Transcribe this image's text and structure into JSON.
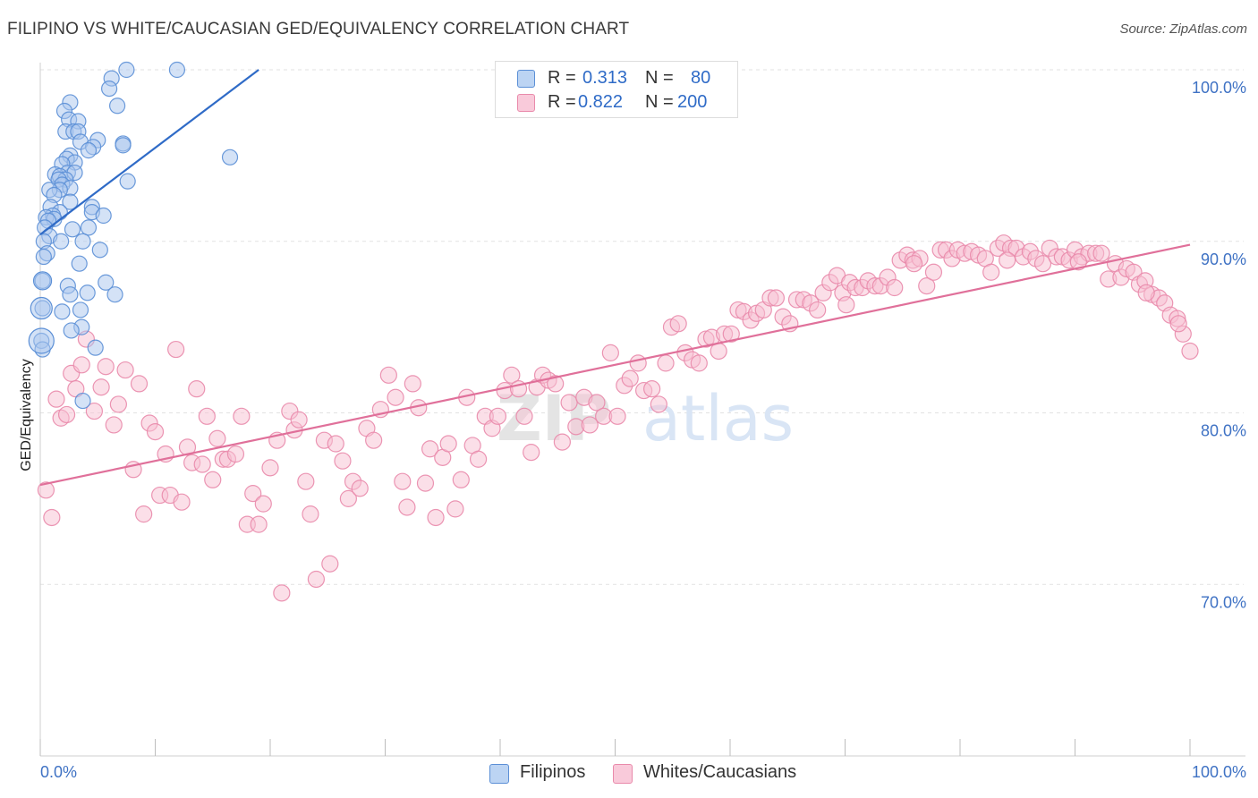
{
  "header": {
    "title": "FILIPINO VS WHITE/CAUCASIAN GED/EQUIVALENCY CORRELATION CHART",
    "source": "Source: ZipAtlas.com"
  },
  "legend": {
    "rows": [
      {
        "r_label": "R =",
        "r_value": "0.313",
        "n_label": "N =",
        "n_value": "80",
        "color": "#8db4e8"
      },
      {
        "r_label": "R =",
        "r_value": "0.822",
        "n_label": "N =",
        "n_value": "200",
        "color": "#f4a6c0"
      }
    ]
  },
  "bottom_legend": {
    "filipinos": "Filipinos",
    "whites": "Whites/Caucasians"
  },
  "colors": {
    "blue_fill": "#a9c6ee",
    "blue_stroke": "#5b8fd6",
    "blue_line": "#2f6bc7",
    "pink_fill": "#f7bfd2",
    "pink_stroke": "#e98aab",
    "pink_line": "#e0709a",
    "tick_text": "#3f72c4"
  },
  "watermark": {
    "zip": "ZIP",
    "atlas": "atlas"
  },
  "chart_data": {
    "type": "scatter",
    "title": "FILIPINO VS WHITE/CAUCASIAN GED/EQUIVALENCY CORRELATION CHART",
    "xlabel": "",
    "ylabel": "GED/Equivalency",
    "xlim": [
      0,
      100
    ],
    "ylim": [
      60,
      100
    ],
    "x_tick_labels": [
      "0.0%",
      "100.0%"
    ],
    "y_ticks": [
      70,
      80,
      90,
      100
    ],
    "y_tick_labels": [
      "70.0%",
      "80.0%",
      "90.0%",
      "100.0%"
    ],
    "grid": true,
    "series": [
      {
        "name": "Filipinos",
        "trend": {
          "x0": 0.0,
          "y0": 90.4,
          "x1": 19.0,
          "y1": 100.0
        },
        "points": [
          [
            7.5,
            100
          ],
          [
            11.9,
            100
          ],
          [
            6.2,
            99.5
          ],
          [
            6.0,
            98.9
          ],
          [
            2.6,
            98.1
          ],
          [
            6.7,
            97.9
          ],
          [
            2.1,
            97.6
          ],
          [
            2.5,
            97.1
          ],
          [
            3.3,
            97.0
          ],
          [
            2.2,
            96.4
          ],
          [
            2.9,
            96.4
          ],
          [
            3.3,
            96.4
          ],
          [
            5.0,
            95.9
          ],
          [
            3.5,
            95.8
          ],
          [
            7.2,
            95.7
          ],
          [
            7.2,
            95.6
          ],
          [
            4.6,
            95.5
          ],
          [
            4.2,
            95.3
          ],
          [
            2.6,
            95.0
          ],
          [
            16.5,
            94.9
          ],
          [
            2.3,
            94.8
          ],
          [
            3.0,
            94.6
          ],
          [
            1.9,
            94.5
          ],
          [
            2.4,
            94.0
          ],
          [
            3.0,
            94.0
          ],
          [
            1.3,
            93.9
          ],
          [
            1.7,
            93.8
          ],
          [
            2.2,
            93.6
          ],
          [
            1.6,
            93.6
          ],
          [
            7.6,
            93.5
          ],
          [
            1.9,
            93.3
          ],
          [
            2.6,
            93.1
          ],
          [
            1.7,
            93.0
          ],
          [
            0.8,
            93.0
          ],
          [
            1.2,
            92.7
          ],
          [
            2.6,
            92.3
          ],
          [
            4.5,
            92.0
          ],
          [
            0.9,
            92.0
          ],
          [
            1.7,
            91.7
          ],
          [
            4.5,
            91.7
          ],
          [
            1.1,
            91.5
          ],
          [
            5.5,
            91.5
          ],
          [
            0.5,
            91.4
          ],
          [
            1.2,
            91.3
          ],
          [
            0.7,
            91.2
          ],
          [
            0.4,
            90.8
          ],
          [
            4.2,
            90.8
          ],
          [
            2.8,
            90.7
          ],
          [
            0.8,
            90.3
          ],
          [
            1.8,
            90.0
          ],
          [
            0.3,
            90.0
          ],
          [
            3.7,
            90.0
          ],
          [
            5.2,
            89.5
          ],
          [
            0.6,
            89.3
          ],
          [
            0.3,
            89.1
          ],
          [
            3.4,
            88.7
          ],
          [
            0.2,
            87.7
          ],
          [
            5.7,
            87.6
          ],
          [
            2.4,
            87.4
          ],
          [
            4.1,
            87.0
          ],
          [
            6.5,
            86.9
          ],
          [
            2.6,
            86.9
          ],
          [
            0.2,
            86.1
          ],
          [
            3.5,
            86.0
          ],
          [
            1.9,
            85.9
          ],
          [
            3.6,
            85.0
          ],
          [
            2.7,
            84.8
          ],
          [
            0.1,
            84.2
          ],
          [
            4.8,
            83.8
          ],
          [
            0.2,
            83.7
          ],
          [
            3.7,
            80.7
          ]
        ]
      },
      {
        "name": "Whites/Caucasians",
        "trend": {
          "x0": 0.0,
          "y0": 75.8,
          "x1": 100.0,
          "y1": 89.8
        },
        "points": [
          [
            0.5,
            75.5
          ],
          [
            1.0,
            73.9
          ],
          [
            1.4,
            80.8
          ],
          [
            1.8,
            79.7
          ],
          [
            2.3,
            79.9
          ],
          [
            2.7,
            82.3
          ],
          [
            3.1,
            81.4
          ],
          [
            3.6,
            82.8
          ],
          [
            4.0,
            84.3
          ],
          [
            4.7,
            80.1
          ],
          [
            5.3,
            81.5
          ],
          [
            5.7,
            82.7
          ],
          [
            6.4,
            79.3
          ],
          [
            6.8,
            80.5
          ],
          [
            7.4,
            82.5
          ],
          [
            8.1,
            76.7
          ],
          [
            8.6,
            81.7
          ],
          [
            9.0,
            74.1
          ],
          [
            9.5,
            79.4
          ],
          [
            10.0,
            78.9
          ],
          [
            10.4,
            75.2
          ],
          [
            10.9,
            77.6
          ],
          [
            11.3,
            75.2
          ],
          [
            11.8,
            83.7
          ],
          [
            12.3,
            74.8
          ],
          [
            12.8,
            78.0
          ],
          [
            13.2,
            77.1
          ],
          [
            13.6,
            81.4
          ],
          [
            14.1,
            77.0
          ],
          [
            14.5,
            79.8
          ],
          [
            15.0,
            76.1
          ],
          [
            15.4,
            78.5
          ],
          [
            15.9,
            77.3
          ],
          [
            16.3,
            77.3
          ],
          [
            17.0,
            77.6
          ],
          [
            17.5,
            79.8
          ],
          [
            18.0,
            73.5
          ],
          [
            18.5,
            75.3
          ],
          [
            19.0,
            73.5
          ],
          [
            19.4,
            74.7
          ],
          [
            20.0,
            76.8
          ],
          [
            20.6,
            78.4
          ],
          [
            21.0,
            69.5
          ],
          [
            21.7,
            80.1
          ],
          [
            22.1,
            79.0
          ],
          [
            22.5,
            79.6
          ],
          [
            23.1,
            76.0
          ],
          [
            23.5,
            74.1
          ],
          [
            24.0,
            70.3
          ],
          [
            24.7,
            78.4
          ],
          [
            25.2,
            71.2
          ],
          [
            25.7,
            78.2
          ],
          [
            26.3,
            77.2
          ],
          [
            26.8,
            75.0
          ],
          [
            27.2,
            76.0
          ],
          [
            27.8,
            75.6
          ],
          [
            28.4,
            79.1
          ],
          [
            29.0,
            78.4
          ],
          [
            29.6,
            80.2
          ],
          [
            30.3,
            82.2
          ],
          [
            30.9,
            80.9
          ],
          [
            31.5,
            76.0
          ],
          [
            31.9,
            74.5
          ],
          [
            32.4,
            81.7
          ],
          [
            32.9,
            80.3
          ],
          [
            33.5,
            75.9
          ],
          [
            33.9,
            77.9
          ],
          [
            34.4,
            73.9
          ],
          [
            35.0,
            77.4
          ],
          [
            35.5,
            78.2
          ],
          [
            36.1,
            74.4
          ],
          [
            36.6,
            76.1
          ],
          [
            37.1,
            80.9
          ],
          [
            37.6,
            78.1
          ],
          [
            38.1,
            77.3
          ],
          [
            38.7,
            79.8
          ],
          [
            39.3,
            79.1
          ],
          [
            39.8,
            79.8
          ],
          [
            40.4,
            81.3
          ],
          [
            41.0,
            82.2
          ],
          [
            41.6,
            81.4
          ],
          [
            42.1,
            79.8
          ],
          [
            42.7,
            77.7
          ],
          [
            43.2,
            81.5
          ],
          [
            43.7,
            82.2
          ],
          [
            44.2,
            81.9
          ],
          [
            44.8,
            81.7
          ],
          [
            45.4,
            78.3
          ],
          [
            46.0,
            80.6
          ],
          [
            46.6,
            79.2
          ],
          [
            47.3,
            80.9
          ],
          [
            47.8,
            79.3
          ],
          [
            48.4,
            80.6
          ],
          [
            49.0,
            79.8
          ],
          [
            49.6,
            83.5
          ],
          [
            50.2,
            79.8
          ],
          [
            50.8,
            81.6
          ],
          [
            51.3,
            82.0
          ],
          [
            52.0,
            82.9
          ],
          [
            52.5,
            81.3
          ],
          [
            53.2,
            81.4
          ],
          [
            53.8,
            80.5
          ],
          [
            54.4,
            82.9
          ],
          [
            54.9,
            85.0
          ],
          [
            55.5,
            85.2
          ],
          [
            56.1,
            83.5
          ],
          [
            56.7,
            83.1
          ],
          [
            57.3,
            82.9
          ],
          [
            57.9,
            84.3
          ],
          [
            58.4,
            84.4
          ],
          [
            59.0,
            83.6
          ],
          [
            59.5,
            84.6
          ],
          [
            60.1,
            84.6
          ],
          [
            60.7,
            86.0
          ],
          [
            61.2,
            85.9
          ],
          [
            61.8,
            85.4
          ],
          [
            62.3,
            85.8
          ],
          [
            62.9,
            86.0
          ],
          [
            63.5,
            86.7
          ],
          [
            64.0,
            86.7
          ],
          [
            64.6,
            85.6
          ],
          [
            65.2,
            85.2
          ],
          [
            65.8,
            86.6
          ],
          [
            66.4,
            86.6
          ],
          [
            67.0,
            86.4
          ],
          [
            67.6,
            86.0
          ],
          [
            68.1,
            87.0
          ],
          [
            68.7,
            87.6
          ],
          [
            69.3,
            88.0
          ],
          [
            69.8,
            87.0
          ],
          [
            70.4,
            87.6
          ],
          [
            70.9,
            87.3
          ],
          [
            71.5,
            87.3
          ],
          [
            72.0,
            87.7
          ],
          [
            72.6,
            87.4
          ],
          [
            73.1,
            87.4
          ],
          [
            73.7,
            87.9
          ],
          [
            74.3,
            87.3
          ],
          [
            74.8,
            88.9
          ],
          [
            75.4,
            89.2
          ],
          [
            75.9,
            88.9
          ],
          [
            76.5,
            89.0
          ],
          [
            77.1,
            87.4
          ],
          [
            77.7,
            88.2
          ],
          [
            78.3,
            89.5
          ],
          [
            78.8,
            89.5
          ],
          [
            79.3,
            89.0
          ],
          [
            79.8,
            89.5
          ],
          [
            80.4,
            89.3
          ],
          [
            81.0,
            89.4
          ],
          [
            81.6,
            89.2
          ],
          [
            82.2,
            89.0
          ],
          [
            82.7,
            88.2
          ],
          [
            83.3,
            89.6
          ],
          [
            83.8,
            89.9
          ],
          [
            84.4,
            89.6
          ],
          [
            84.9,
            89.6
          ],
          [
            85.5,
            89.1
          ],
          [
            86.1,
            89.4
          ],
          [
            86.6,
            89.0
          ],
          [
            87.2,
            88.7
          ],
          [
            87.8,
            89.6
          ],
          [
            88.4,
            89.1
          ],
          [
            88.9,
            89.1
          ],
          [
            89.5,
            88.9
          ],
          [
            90.0,
            89.5
          ],
          [
            90.6,
            89.1
          ],
          [
            91.2,
            89.3
          ],
          [
            91.8,
            89.3
          ],
          [
            92.3,
            89.3
          ],
          [
            92.9,
            87.8
          ],
          [
            93.5,
            88.7
          ],
          [
            94.0,
            87.9
          ],
          [
            94.5,
            88.4
          ],
          [
            95.1,
            88.2
          ],
          [
            95.6,
            87.5
          ],
          [
            96.1,
            87.7
          ],
          [
            96.7,
            86.9
          ],
          [
            97.3,
            86.7
          ],
          [
            97.8,
            86.4
          ],
          [
            98.3,
            85.7
          ],
          [
            98.9,
            85.5
          ],
          [
            99.4,
            84.6
          ],
          [
            100.0,
            83.6
          ],
          [
            99.0,
            85.2
          ],
          [
            96.2,
            87.0
          ],
          [
            90.3,
            88.8
          ],
          [
            84.1,
            88.9
          ],
          [
            76.0,
            88.7
          ],
          [
            70.1,
            86.3
          ]
        ]
      }
    ]
  }
}
